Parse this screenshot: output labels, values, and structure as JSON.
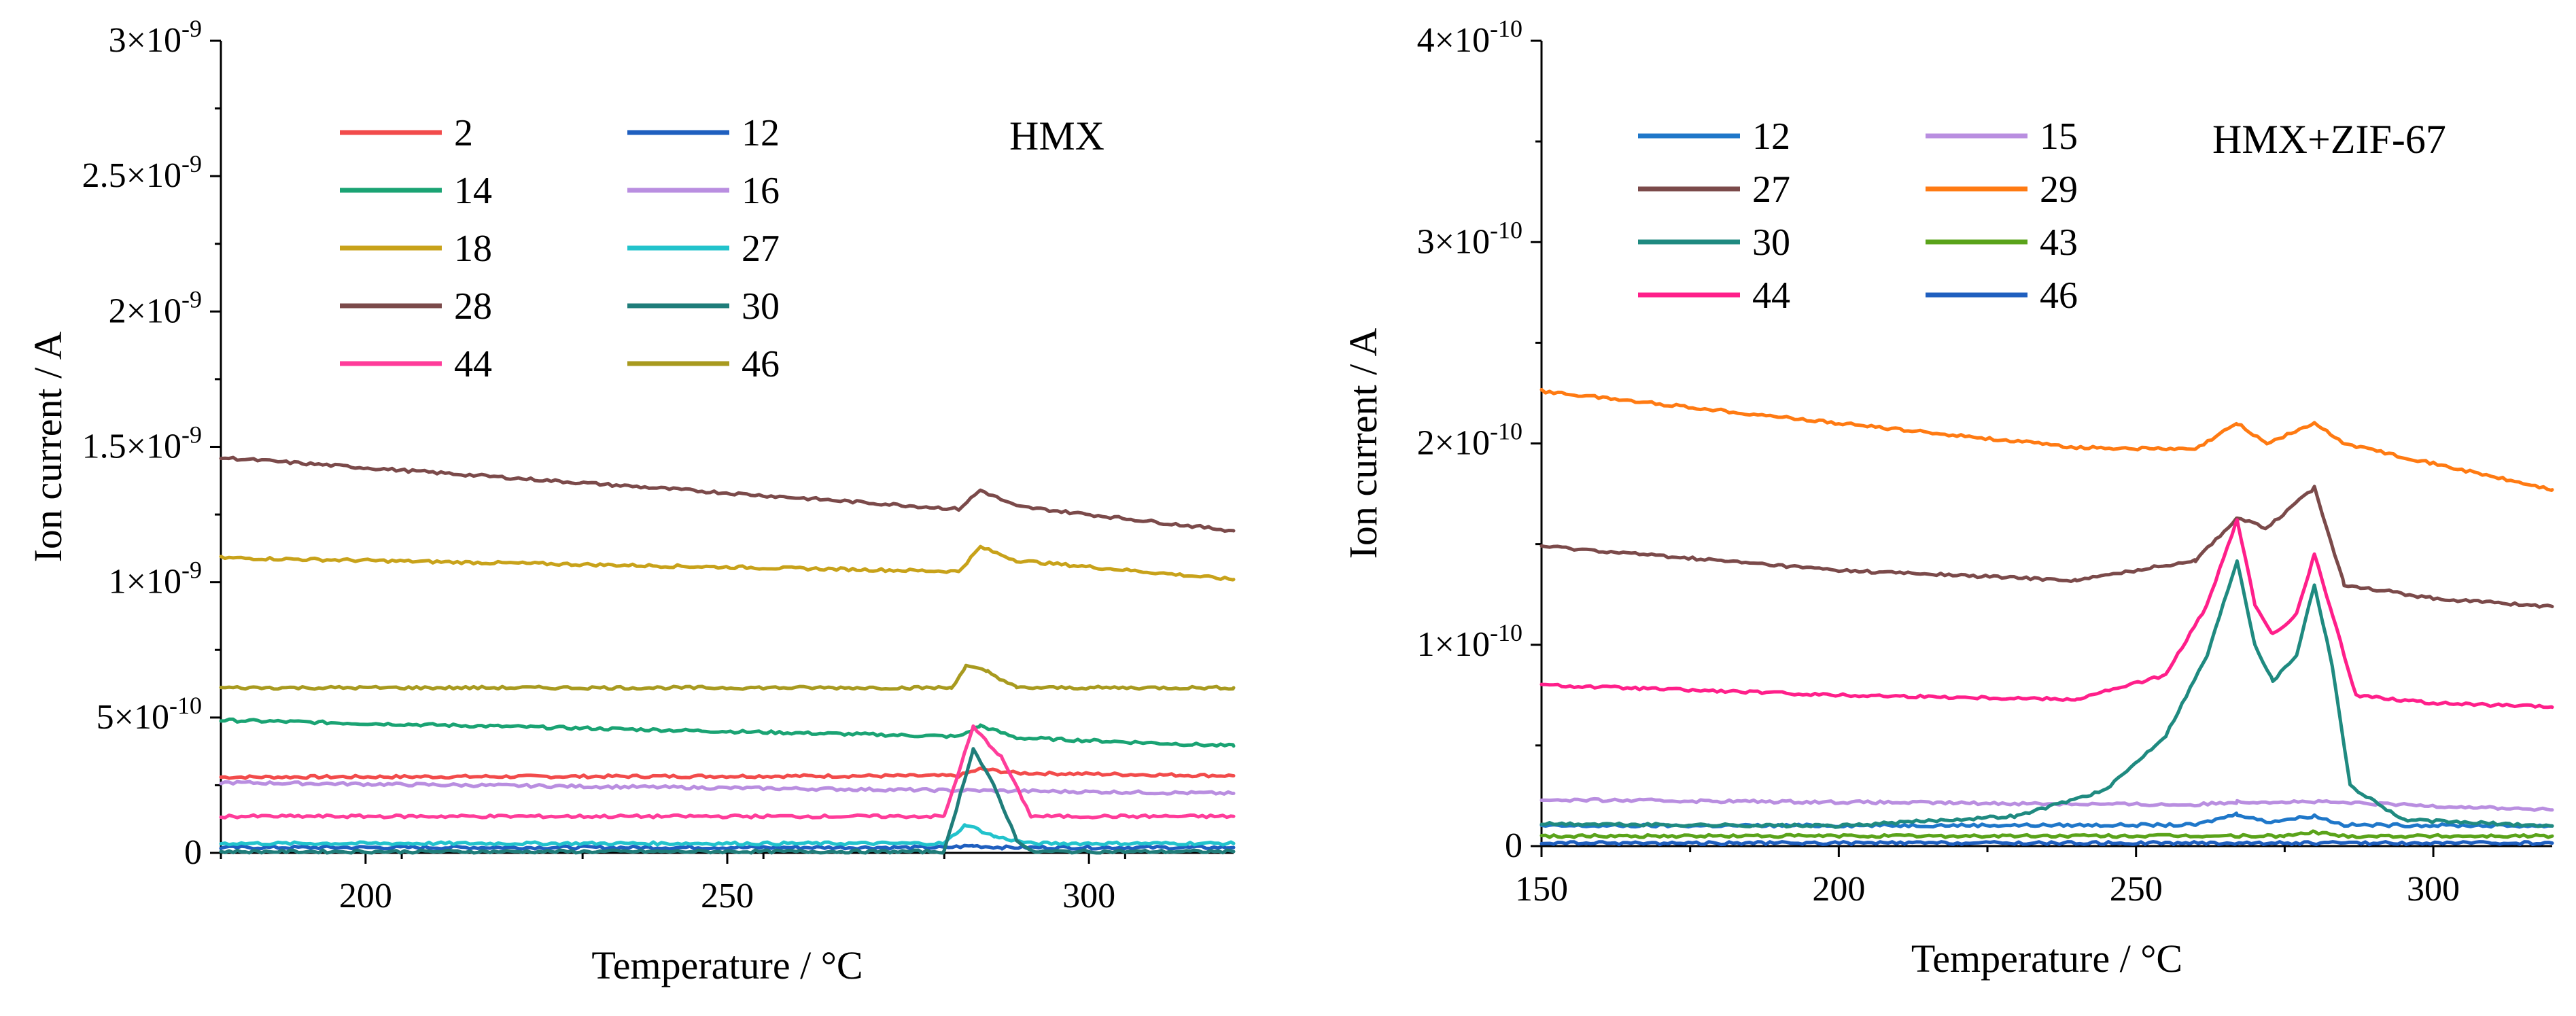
{
  "chart_data": [
    {
      "type": "line",
      "annotation": "HMX",
      "xlabel": "Temperature / °C",
      "ylabel": "Ion current / A",
      "xlim": [
        180,
        320
      ],
      "ylim": [
        0,
        3e-09
      ],
      "x_ticks": [
        200,
        250,
        300
      ],
      "x_tick_labels": [
        "200",
        "250",
        "300"
      ],
      "y_ticks": [
        0,
        5e-10,
        1e-09,
        1.5e-09,
        2e-09,
        2.5e-09,
        3e-09
      ],
      "y_tick_labels": [
        {
          "mantissa": "0",
          "exp": ""
        },
        {
          "mantissa": "5×10",
          "exp": "-10"
        },
        {
          "mantissa": "1×10",
          "exp": "-9"
        },
        {
          "mantissa": "1.5×10",
          "exp": "-9"
        },
        {
          "mantissa": "2×10",
          "exp": "-9"
        },
        {
          "mantissa": "2.5×10",
          "exp": "-9"
        },
        {
          "mantissa": "3×10",
          "exp": "-9"
        }
      ],
      "legend_position": "top-left",
      "series": [
        {
          "name": "2",
          "color": "#f24b4b",
          "points": [
            [
              180,
              2.8e-10
            ],
            [
              282,
              2.85e-10
            ],
            [
              285,
              3.1e-10
            ],
            [
              290,
              2.95e-10
            ],
            [
              320,
              2.85e-10
            ]
          ]
        },
        {
          "name": "12",
          "color": "#1f5fbf",
          "points": [
            [
              180,
              2e-11
            ],
            [
              280,
              2e-11
            ],
            [
              284,
              2.6e-11
            ],
            [
              288,
              2e-11
            ],
            [
              320,
              2e-11
            ]
          ]
        },
        {
          "name": "14",
          "color": "#1aa373",
          "points": [
            [
              180,
              4.9e-10
            ],
            [
              282,
              4.3e-10
            ],
            [
              285,
              4.7e-10
            ],
            [
              290,
              4.25e-10
            ],
            [
              320,
              3.95e-10
            ]
          ]
        },
        {
          "name": "16",
          "color": "#b98ee0",
          "points": [
            [
              180,
              2.6e-10
            ],
            [
              320,
              2.2e-10
            ]
          ]
        },
        {
          "name": "18",
          "color": "#c8a21a",
          "points": [
            [
              180,
              1.09e-09
            ],
            [
              282,
              1.04e-09
            ],
            [
              285,
              1.13e-09
            ],
            [
              290,
              1.08e-09
            ],
            [
              320,
              1.01e-09
            ]
          ]
        },
        {
          "name": "27",
          "color": "#22c3cc",
          "points": [
            [
              180,
              3.5e-11
            ],
            [
              280,
              3.5e-11
            ],
            [
              283,
              1.05e-10
            ],
            [
              287,
              6e-11
            ],
            [
              292,
              3.5e-11
            ],
            [
              320,
              3.5e-11
            ]
          ]
        },
        {
          "name": "28",
          "color": "#7b4a4a",
          "points": [
            [
              180,
              1.46e-09
            ],
            [
              282,
              1.27e-09
            ],
            [
              285,
              1.34e-09
            ],
            [
              290,
              1.28e-09
            ],
            [
              320,
              1.19e-09
            ]
          ]
        },
        {
          "name": "30",
          "color": "#1f7d7a",
          "points": [
            [
              180,
              5e-12
            ],
            [
              280,
              5e-12
            ],
            [
              284,
              3.85e-10
            ],
            [
              287,
              2.4e-10
            ],
            [
              290,
              5e-11
            ],
            [
              292,
              5e-12
            ],
            [
              320,
              5e-12
            ]
          ]
        },
        {
          "name": "44",
          "color": "#ff3c9a",
          "points": [
            [
              180,
              1.35e-10
            ],
            [
              280,
              1.35e-10
            ],
            [
              284,
              4.65e-10
            ],
            [
              288,
              3.5e-10
            ],
            [
              292,
              1.35e-10
            ],
            [
              320,
              1.35e-10
            ]
          ]
        },
        {
          "name": "46",
          "color": "#a89a1f",
          "points": [
            [
              180,
              6.1e-10
            ],
            [
              281,
              6.1e-10
            ],
            [
              283,
              6.9e-10
            ],
            [
              286,
              6.7e-10
            ],
            [
              290,
              6.1e-10
            ],
            [
              320,
              6.1e-10
            ]
          ]
        }
      ]
    },
    {
      "type": "line",
      "annotation": "HMX+ZIF-67",
      "xlabel": "Temperature / °C",
      "ylabel": "Ion current / A",
      "xlim": [
        150,
        320
      ],
      "ylim": [
        0,
        4e-10
      ],
      "x_ticks": [
        150,
        200,
        250,
        300
      ],
      "x_tick_labels": [
        "150",
        "200",
        "250",
        "300"
      ],
      "y_ticks": [
        0,
        1e-10,
        2e-10,
        3e-10,
        4e-10
      ],
      "y_tick_labels": [
        {
          "mantissa": "0",
          "exp": ""
        },
        {
          "mantissa": "1×10",
          "exp": "-10"
        },
        {
          "mantissa": "2×10",
          "exp": "-10"
        },
        {
          "mantissa": "3×10",
          "exp": "-10"
        },
        {
          "mantissa": "4×10",
          "exp": "-10"
        }
      ],
      "legend_position": "top-left",
      "series": [
        {
          "name": "12",
          "color": "#1f77c9",
          "points": [
            [
              150,
              1e-11
            ],
            [
              260,
              1.05e-11
            ],
            [
              267,
              1.6e-11
            ],
            [
              272,
              1.2e-11
            ],
            [
              280,
              1.5e-11
            ],
            [
              285,
              1.05e-11
            ],
            [
              320,
              1e-11
            ]
          ]
        },
        {
          "name": "15",
          "color": "#b98ee0",
          "points": [
            [
              150,
              2.3e-11
            ],
            [
              260,
              2.05e-11
            ],
            [
              267,
              2.2e-11
            ],
            [
              280,
              2.2e-11
            ],
            [
              320,
              1.8e-11
            ]
          ]
        },
        {
          "name": "27",
          "color": "#7b4a4a",
          "points": [
            [
              150,
              1.49e-10
            ],
            [
              200,
              1.37e-10
            ],
            [
              240,
              1.32e-10
            ],
            [
              260,
              1.42e-10
            ],
            [
              267,
              1.63e-10
            ],
            [
              272,
              1.58e-10
            ],
            [
              280,
              1.78e-10
            ],
            [
              285,
              1.3e-10
            ],
            [
              300,
              1.23e-10
            ],
            [
              320,
              1.19e-10
            ]
          ]
        },
        {
          "name": "29",
          "color": "#ff7a12",
          "points": [
            [
              150,
              2.26e-10
            ],
            [
              200,
              2.1e-10
            ],
            [
              240,
              1.98e-10
            ],
            [
              260,
              1.97e-10
            ],
            [
              267,
              2.1e-10
            ],
            [
              272,
              2e-10
            ],
            [
              280,
              2.1e-10
            ],
            [
              285,
              2e-10
            ],
            [
              300,
              1.9e-10
            ],
            [
              320,
              1.77e-10
            ]
          ]
        },
        {
          "name": "30",
          "color": "#1f8a80",
          "points": [
            [
              150,
              1.1e-11
            ],
            [
              200,
              1e-11
            ],
            [
              230,
              1.5e-11
            ],
            [
              245,
              2.8e-11
            ],
            [
              255,
              5.5e-11
            ],
            [
              262,
              9.5e-11
            ],
            [
              267,
              1.42e-10
            ],
            [
              270,
              1e-10
            ],
            [
              273,
              8.2e-11
            ],
            [
              277,
              9.5e-11
            ],
            [
              280,
              1.3e-10
            ],
            [
              283,
              9e-11
            ],
            [
              286,
              3e-11
            ],
            [
              295,
              1.3e-11
            ],
            [
              320,
              1e-11
            ]
          ]
        },
        {
          "name": "43",
          "color": "#5aa31a",
          "points": [
            [
              150,
              5e-12
            ],
            [
              275,
              5e-12
            ],
            [
              280,
              7e-12
            ],
            [
              285,
              5e-12
            ],
            [
              320,
              5e-12
            ]
          ]
        },
        {
          "name": "44",
          "color": "#ff1f8a",
          "points": [
            [
              150,
              8e-11
            ],
            [
              200,
              7.5e-11
            ],
            [
              240,
              7.3e-11
            ],
            [
              255,
              8.5e-11
            ],
            [
              262,
              1.2e-10
            ],
            [
              267,
              1.62e-10
            ],
            [
              270,
              1.2e-10
            ],
            [
              273,
              1.05e-10
            ],
            [
              277,
              1.15e-10
            ],
            [
              280,
              1.45e-10
            ],
            [
              283,
              1.15e-10
            ],
            [
              287,
              7.5e-11
            ],
            [
              300,
              7.1e-11
            ],
            [
              320,
              6.9e-11
            ]
          ]
        },
        {
          "name": "46",
          "color": "#1f5fbf",
          "points": [
            [
              150,
              1.5e-12
            ],
            [
              320,
              1.5e-12
            ]
          ]
        }
      ]
    }
  ]
}
